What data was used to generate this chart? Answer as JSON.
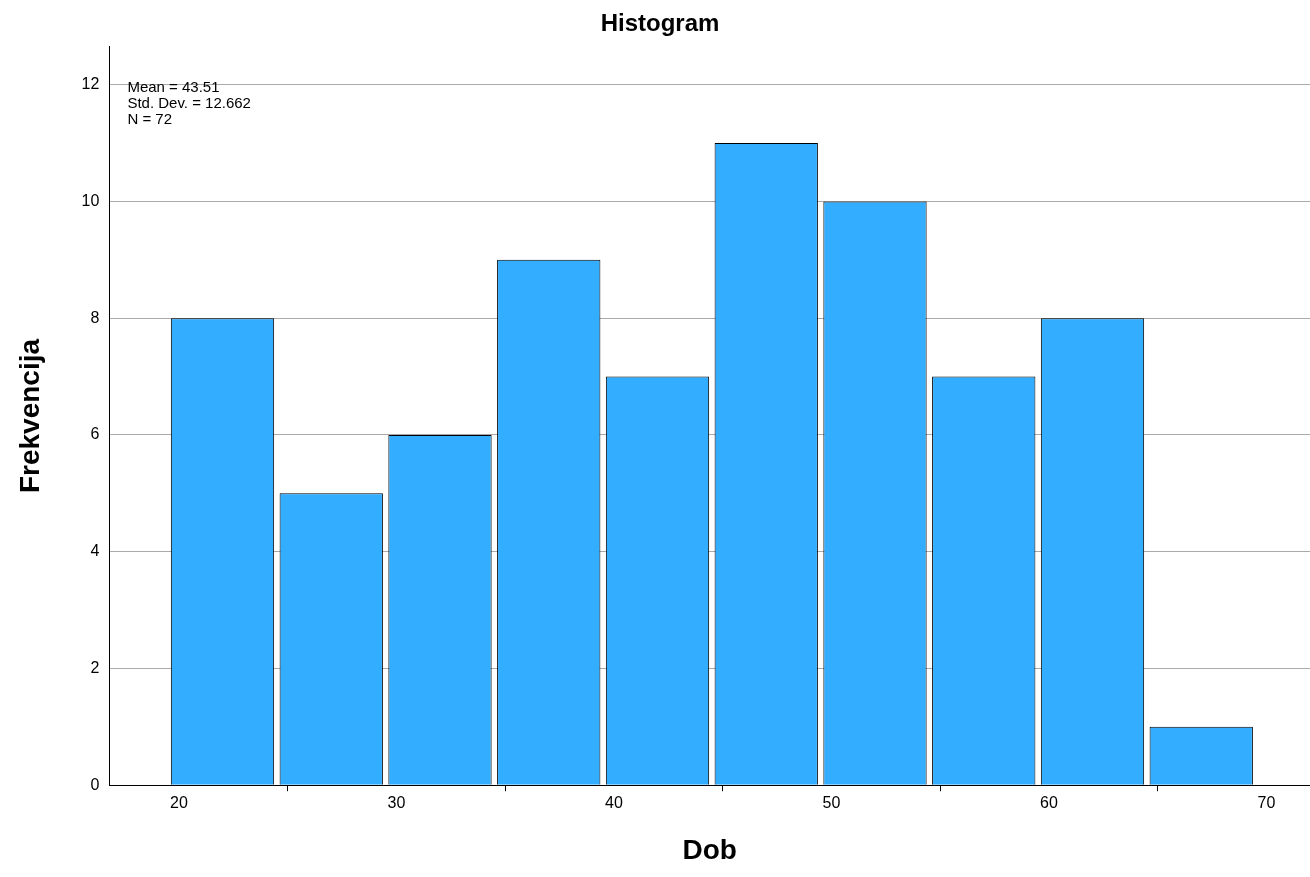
{
  "chart_data": {
    "type": "histogram",
    "title": "Histogram",
    "xlabel": "Dob",
    "ylabel": "Frekvencija",
    "bins": [
      19.5,
      24.5,
      29.5,
      34.5,
      39.5,
      44.5,
      49.5,
      54.5,
      59.5,
      64.5,
      69.5
    ],
    "values": [
      8,
      5,
      6,
      9,
      7,
      11,
      10,
      7,
      8,
      1
    ],
    "color": "#33adff",
    "xlim": [
      16.8,
      72
    ],
    "xticks": [
      20,
      30,
      40,
      50,
      60,
      70
    ],
    "ylim": [
      0,
      12.65
    ],
    "yticks": [
      0,
      2,
      4,
      6,
      8,
      10,
      12
    ],
    "grid": "y",
    "legend": false,
    "annotations": [
      "Mean = 43.51",
      "Std. Dev. = 12.662",
      "N = 72"
    ]
  }
}
